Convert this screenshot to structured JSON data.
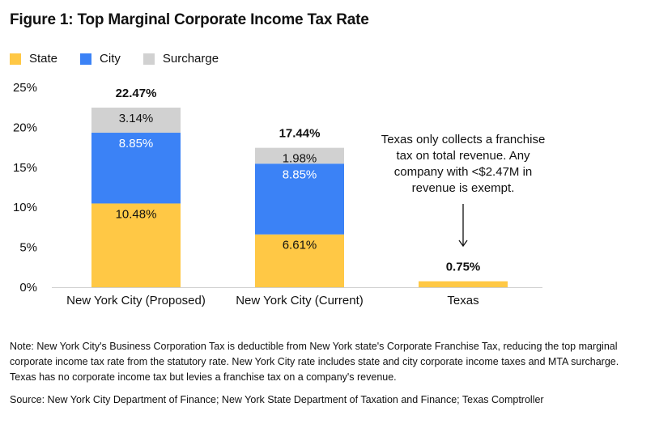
{
  "title": "Figure 1: Top Marginal Corporate Income Tax Rate",
  "chart_data": {
    "type": "bar",
    "stacked": true,
    "title": "Figure 1: Top Marginal Corporate Income Tax Rate",
    "xlabel": "",
    "ylabel": "",
    "ylim": [
      0,
      25
    ],
    "yticks": [
      "0%",
      "5%",
      "10%",
      "15%",
      "20%",
      "25%"
    ],
    "grid": false,
    "legend_position": "top-left",
    "categories": [
      "New York City (Proposed)",
      "New York City (Current)",
      "Texas"
    ],
    "series": [
      {
        "name": "State",
        "color": "#FFC845",
        "values": [
          10.48,
          6.61,
          0.75
        ],
        "labels": [
          "10.48%",
          "6.61%",
          ""
        ]
      },
      {
        "name": "City",
        "color": "#3B82F6",
        "values": [
          8.85,
          8.85,
          0
        ],
        "labels": [
          "8.85%",
          "8.85%",
          ""
        ]
      },
      {
        "name": "Surcharge",
        "color": "#D1D1D1",
        "values": [
          3.14,
          1.98,
          0
        ],
        "labels": [
          "3.14%",
          "1.98%",
          ""
        ]
      }
    ],
    "totals": [
      22.47,
      17.44,
      0.75
    ],
    "total_labels": [
      "22.47%",
      "17.44%",
      "0.75%"
    ],
    "annotation": {
      "category": "Texas",
      "lines": [
        "Texas only collects a franchise",
        "tax on total revenue. Any",
        "company with <$2.47M in",
        "revenue is exempt."
      ]
    }
  },
  "note": "Note: New York City's Business Corporation Tax is deductible from New York state's Corporate Franchise Tax, reducing the top marginal corporate income tax rate from the statutory rate. New York City rate includes state and city corporate income taxes and MTA surcharge. Texas has no corporate income tax but levies a franchise tax on a company's revenue.",
  "source": "Source: New York City Department of Finance; New York State Department of Taxation and Finance; Texas Comptroller"
}
